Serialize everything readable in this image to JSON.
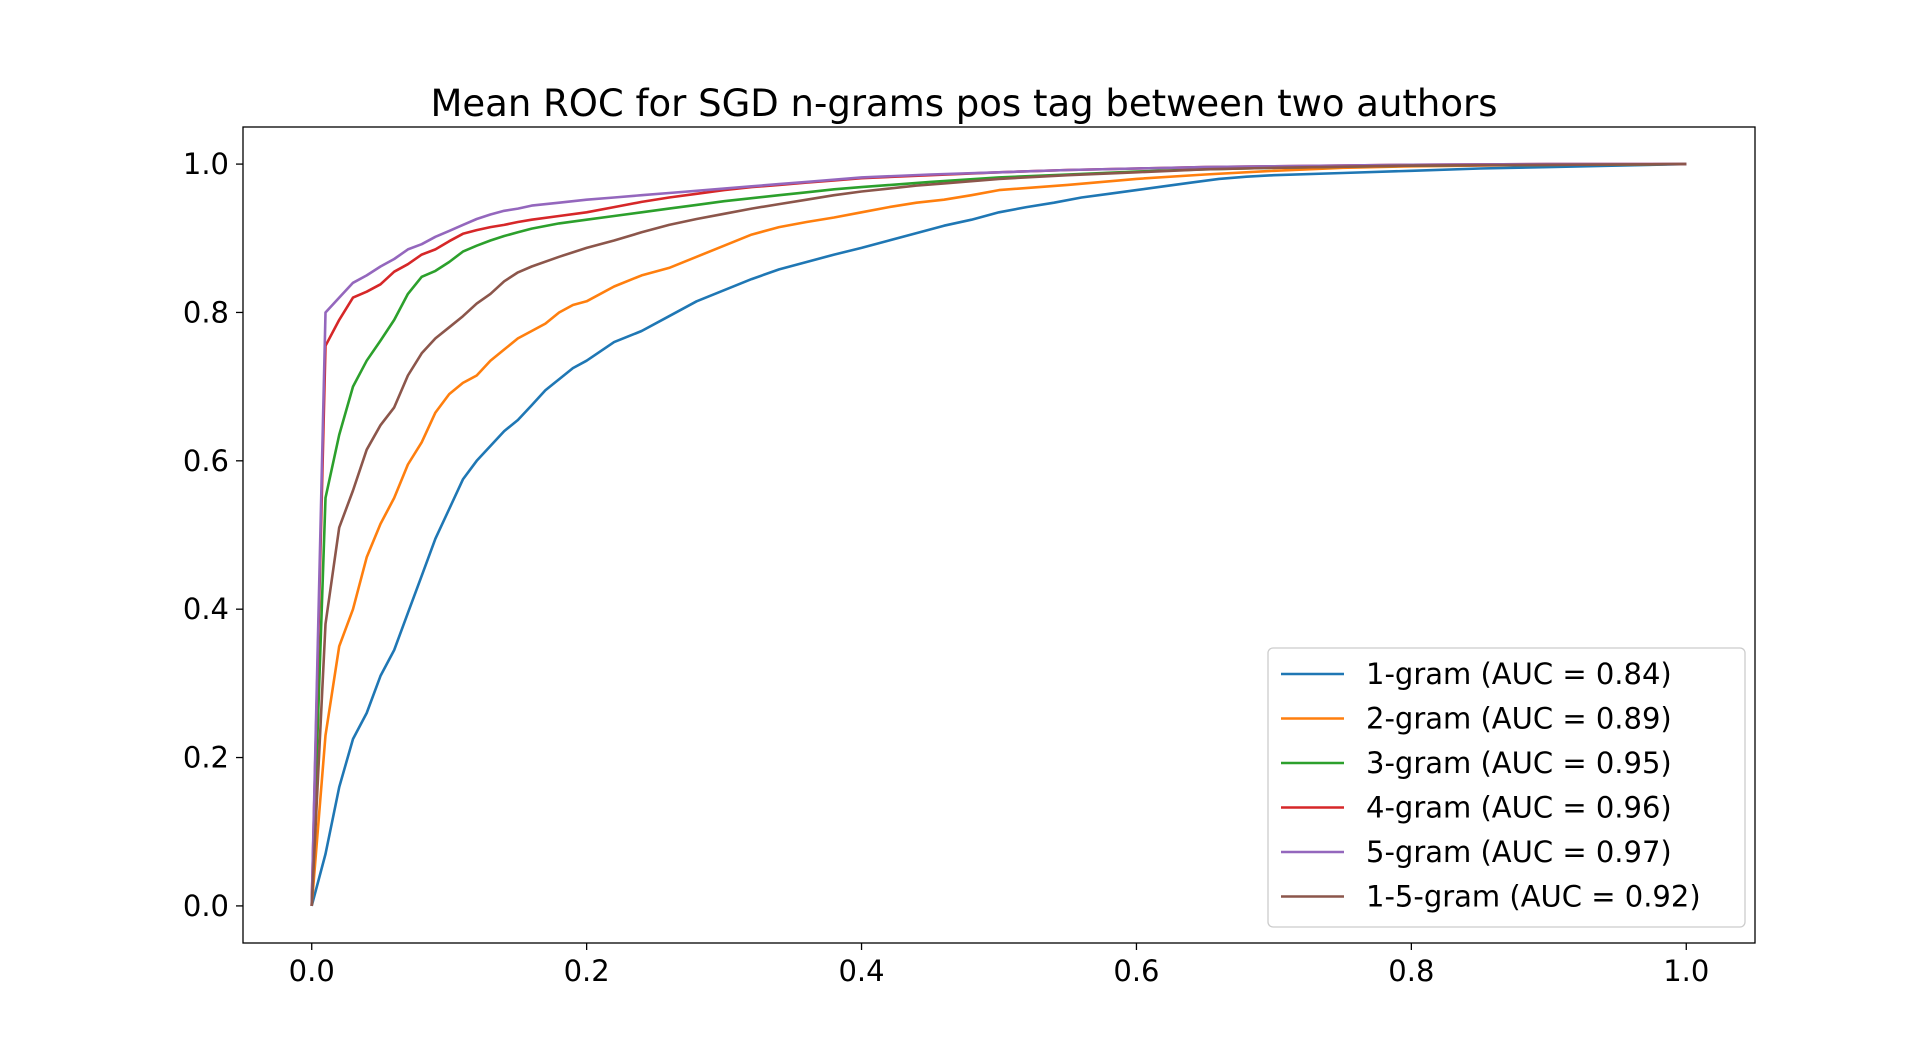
{
  "chart_data": {
    "type": "line",
    "title": "Mean ROC for SGD n-grams pos tag between two authors",
    "xlabel": "",
    "ylabel": "",
    "xlim": [
      -0.05,
      1.05
    ],
    "ylim": [
      -0.05,
      1.05
    ],
    "xticks": [
      0.0,
      0.2,
      0.4,
      0.6,
      0.8,
      1.0
    ],
    "xtick_labels": [
      "0.0",
      "0.2",
      "0.4",
      "0.6",
      "0.8",
      "1.0"
    ],
    "yticks": [
      0.0,
      0.2,
      0.4,
      0.6,
      0.8,
      1.0
    ],
    "ytick_labels": [
      "0.0",
      "0.2",
      "0.4",
      "0.6",
      "0.8",
      "1.0"
    ],
    "grid": false,
    "legend_position": "lower-right",
    "series": [
      {
        "name": "1-gram (AUC = 0.84)",
        "color": "#1f77b4",
        "x": [
          0,
          0.01,
          0.02,
          0.03,
          0.04,
          0.05,
          0.06,
          0.07,
          0.08,
          0.09,
          0.1,
          0.11,
          0.12,
          0.13,
          0.14,
          0.15,
          0.16,
          0.17,
          0.18,
          0.19,
          0.2,
          0.22,
          0.24,
          0.26,
          0.28,
          0.3,
          0.32,
          0.34,
          0.36,
          0.38,
          0.4,
          0.42,
          0.44,
          0.46,
          0.48,
          0.5,
          0.52,
          0.54,
          0.56,
          0.58,
          0.6,
          0.62,
          0.64,
          0.66,
          0.68,
          0.7,
          0.75,
          0.8,
          0.85,
          0.9,
          0.95,
          1.0
        ],
        "y": [
          0,
          0.07,
          0.16,
          0.225,
          0.26,
          0.31,
          0.345,
          0.395,
          0.445,
          0.495,
          0.535,
          0.575,
          0.6,
          0.62,
          0.64,
          0.655,
          0.675,
          0.695,
          0.71,
          0.725,
          0.735,
          0.76,
          0.775,
          0.795,
          0.815,
          0.83,
          0.845,
          0.858,
          0.868,
          0.878,
          0.887,
          0.897,
          0.907,
          0.917,
          0.925,
          0.935,
          0.942,
          0.948,
          0.955,
          0.96,
          0.965,
          0.97,
          0.975,
          0.98,
          0.983,
          0.985,
          0.988,
          0.991,
          0.994,
          0.996,
          0.998,
          1.0
        ]
      },
      {
        "name": "2-gram (AUC = 0.89)",
        "color": "#ff7f0e",
        "x": [
          0,
          0.01,
          0.02,
          0.03,
          0.04,
          0.05,
          0.06,
          0.07,
          0.08,
          0.09,
          0.1,
          0.11,
          0.12,
          0.13,
          0.14,
          0.15,
          0.16,
          0.17,
          0.18,
          0.19,
          0.2,
          0.22,
          0.24,
          0.26,
          0.28,
          0.3,
          0.32,
          0.34,
          0.36,
          0.38,
          0.4,
          0.42,
          0.44,
          0.46,
          0.48,
          0.5,
          0.55,
          0.6,
          0.65,
          0.7,
          0.75,
          0.8,
          0.9,
          1.0
        ],
        "y": [
          0,
          0.23,
          0.35,
          0.4,
          0.47,
          0.515,
          0.55,
          0.595,
          0.625,
          0.665,
          0.69,
          0.705,
          0.715,
          0.735,
          0.75,
          0.765,
          0.775,
          0.785,
          0.8,
          0.81,
          0.815,
          0.835,
          0.85,
          0.86,
          0.875,
          0.89,
          0.905,
          0.915,
          0.922,
          0.928,
          0.935,
          0.942,
          0.948,
          0.952,
          0.958,
          0.965,
          0.972,
          0.98,
          0.986,
          0.991,
          0.995,
          0.997,
          0.999,
          1.0
        ]
      },
      {
        "name": "3-gram (AUC = 0.95)",
        "color": "#2ca02c",
        "x": [
          0,
          0.01,
          0.02,
          0.03,
          0.04,
          0.05,
          0.06,
          0.07,
          0.08,
          0.09,
          0.1,
          0.11,
          0.12,
          0.13,
          0.14,
          0.15,
          0.16,
          0.18,
          0.2,
          0.22,
          0.24,
          0.26,
          0.28,
          0.3,
          0.32,
          0.34,
          0.36,
          0.38,
          0.4,
          0.45,
          0.5,
          0.55,
          0.6,
          0.65,
          0.7,
          0.8,
          0.9,
          1.0
        ],
        "y": [
          0,
          0.55,
          0.635,
          0.7,
          0.735,
          0.762,
          0.79,
          0.825,
          0.848,
          0.856,
          0.868,
          0.882,
          0.89,
          0.897,
          0.903,
          0.908,
          0.913,
          0.92,
          0.925,
          0.93,
          0.935,
          0.94,
          0.945,
          0.95,
          0.954,
          0.958,
          0.962,
          0.966,
          0.969,
          0.976,
          0.982,
          0.986,
          0.99,
          0.993,
          0.995,
          0.998,
          0.999,
          1.0
        ]
      },
      {
        "name": "4-gram (AUC = 0.96)",
        "color": "#d62728",
        "x": [
          0,
          0.01,
          0.02,
          0.03,
          0.04,
          0.05,
          0.06,
          0.07,
          0.08,
          0.09,
          0.1,
          0.11,
          0.12,
          0.13,
          0.14,
          0.15,
          0.16,
          0.18,
          0.2,
          0.22,
          0.24,
          0.26,
          0.28,
          0.3,
          0.32,
          0.34,
          0.36,
          0.38,
          0.4,
          0.45,
          0.5,
          0.55,
          0.6,
          0.65,
          0.7,
          0.8,
          0.9,
          1.0
        ],
        "y": [
          0,
          0.755,
          0.79,
          0.82,
          0.828,
          0.838,
          0.855,
          0.865,
          0.878,
          0.885,
          0.896,
          0.906,
          0.911,
          0.915,
          0.918,
          0.922,
          0.925,
          0.93,
          0.935,
          0.942,
          0.949,
          0.955,
          0.96,
          0.965,
          0.969,
          0.972,
          0.975,
          0.978,
          0.981,
          0.985,
          0.989,
          0.992,
          0.994,
          0.996,
          0.997,
          0.999,
          1.0,
          1.0
        ]
      },
      {
        "name": "5-gram (AUC = 0.97)",
        "color": "#9467bd",
        "x": [
          0,
          0.01,
          0.02,
          0.03,
          0.04,
          0.05,
          0.06,
          0.07,
          0.08,
          0.09,
          0.1,
          0.11,
          0.12,
          0.13,
          0.14,
          0.15,
          0.16,
          0.18,
          0.2,
          0.22,
          0.24,
          0.26,
          0.28,
          0.3,
          0.32,
          0.34,
          0.36,
          0.38,
          0.4,
          0.45,
          0.5,
          0.55,
          0.6,
          0.65,
          0.7,
          0.8,
          0.9,
          1.0
        ],
        "y": [
          0,
          0.8,
          0.82,
          0.84,
          0.85,
          0.862,
          0.872,
          0.885,
          0.892,
          0.902,
          0.91,
          0.918,
          0.926,
          0.932,
          0.937,
          0.94,
          0.944,
          0.948,
          0.952,
          0.955,
          0.958,
          0.961,
          0.964,
          0.967,
          0.97,
          0.973,
          0.976,
          0.979,
          0.982,
          0.986,
          0.989,
          0.992,
          0.994,
          0.996,
          0.997,
          0.999,
          1.0,
          1.0
        ]
      },
      {
        "name": "1-5-gram (AUC = 0.92)",
        "color": "#8c564b",
        "x": [
          0,
          0.01,
          0.02,
          0.03,
          0.04,
          0.05,
          0.06,
          0.07,
          0.08,
          0.09,
          0.1,
          0.11,
          0.12,
          0.13,
          0.14,
          0.15,
          0.16,
          0.18,
          0.2,
          0.22,
          0.24,
          0.26,
          0.28,
          0.3,
          0.32,
          0.34,
          0.36,
          0.38,
          0.4,
          0.42,
          0.44,
          0.46,
          0.48,
          0.5,
          0.55,
          0.6,
          0.65,
          0.7,
          0.8,
          0.9,
          1.0
        ],
        "y": [
          0,
          0.38,
          0.51,
          0.56,
          0.615,
          0.648,
          0.672,
          0.715,
          0.745,
          0.765,
          0.78,
          0.795,
          0.812,
          0.825,
          0.842,
          0.854,
          0.862,
          0.875,
          0.887,
          0.897,
          0.908,
          0.918,
          0.926,
          0.933,
          0.94,
          0.946,
          0.952,
          0.958,
          0.963,
          0.967,
          0.971,
          0.974,
          0.977,
          0.98,
          0.985,
          0.989,
          0.993,
          0.995,
          0.998,
          0.999,
          1.0
        ]
      }
    ]
  }
}
